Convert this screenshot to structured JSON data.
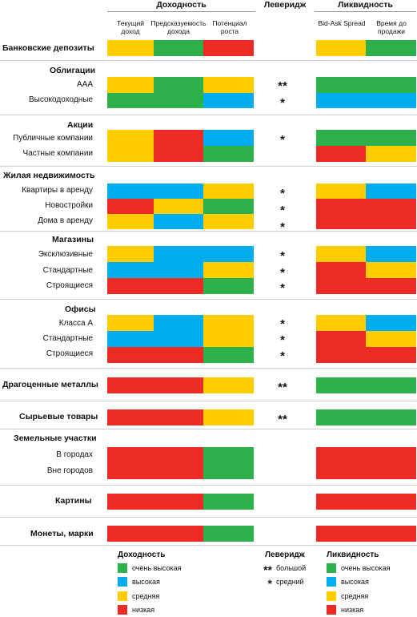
{
  "colors": {
    "green": "#2db24b",
    "blue": "#00aeef",
    "yellow": "#ffcc00",
    "red": "#ee2a24"
  },
  "header": {
    "yield_title": "Доходность",
    "leverage_title": "Леверидж",
    "liquidity_title": "Ликвидность",
    "col_current_income": "Текущий доход",
    "col_predictability": "Предсказуемость дохода",
    "col_growth": "Потенциал роста",
    "col_spread": "Bid-Ask Spread",
    "col_time_to_sell": "Время до продажи"
  },
  "categories": [
    "Банковские депозиты",
    "Облигации",
    "Акции",
    "Жилая недвижимость",
    "Магазины",
    "Офисы",
    "Драгоценные металлы",
    "Сырьевые товары",
    "Земельные участки",
    "Картины",
    "Монеты, марки"
  ],
  "subitems": [
    "ААА",
    "Высокодоходные",
    "Публичные компании",
    "Частные компании",
    "Квартиры в аренду",
    "Новостройки",
    "Дома в аренду",
    "Эксклюзивные",
    "Стандартные",
    "Строящиеся",
    "Класса А",
    "Стандартные",
    "Строящиеся",
    "В городах",
    "Вне городов"
  ],
  "leverage_marks": [
    {
      "value": "**"
    },
    {
      "value": "*"
    },
    {
      "value": "*"
    },
    {
      "value": "*"
    },
    {
      "value": "*"
    },
    {
      "value": "*"
    },
    {
      "value": "*"
    },
    {
      "value": "*"
    },
    {
      "value": "*"
    },
    {
      "value": "*"
    },
    {
      "value": "*"
    },
    {
      "value": "*"
    },
    {
      "value": "**"
    },
    {
      "value": "**"
    }
  ],
  "legend": {
    "yield_title": "Доходность",
    "leverage_title": "Леверидж",
    "liquidity_title": "Ликвидность",
    "levels": [
      "очень высокая",
      "высокая",
      "средняя",
      "низкая"
    ],
    "lev_big_mark": "**",
    "lev_big_label": "большой",
    "lev_mid_mark": "*",
    "lev_mid_label": "средний"
  }
}
